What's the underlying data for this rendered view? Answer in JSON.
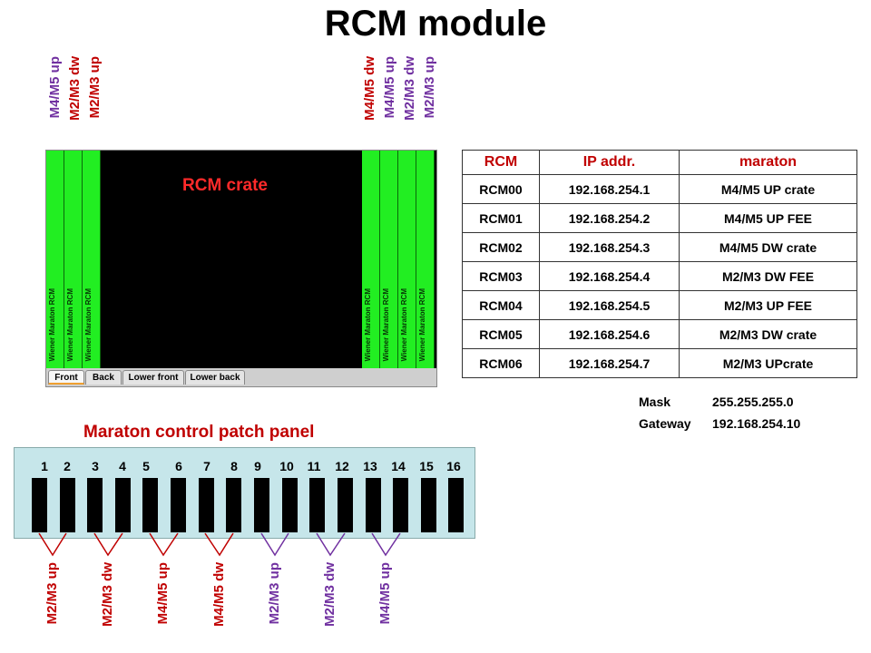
{
  "title": "RCM module",
  "top_labels_left": [
    "M4/M5 up",
    "M2/M3 dw",
    "M2/M3 up"
  ],
  "top_labels_right": [
    "M4/M5 dw",
    "M4/M5 up",
    "M2/M3 dw",
    "M2/M3 up"
  ],
  "crate": {
    "title": "RCM crate",
    "module_label": "Wiener Maraton RCM",
    "tabs": [
      "Front",
      "Back",
      "Lower front",
      "Lower back"
    ]
  },
  "table": {
    "headers": [
      "RCM",
      "IP addr.",
      "maraton"
    ],
    "rows": [
      [
        "RCM00",
        "192.168.254.1",
        "M4/M5 UP crate"
      ],
      [
        "RCM01",
        "192.168.254.2",
        "M4/M5 UP FEE"
      ],
      [
        "RCM02",
        "192.168.254.3",
        "M4/M5 DW crate"
      ],
      [
        "RCM03",
        "192.168.254.4",
        "M2/M3 DW FEE"
      ],
      [
        "RCM04",
        "192.168.254.5",
        "M2/M3 UP FEE"
      ],
      [
        "RCM05",
        "192.168.254.6",
        "M2/M3 DW crate"
      ],
      [
        "RCM06",
        "192.168.254.7",
        "M2/M3 UPcrate"
      ]
    ]
  },
  "network": {
    "mask_label": "Mask",
    "mask_value": "255.255.255.0",
    "gateway_label": "Gateway",
    "gateway_value": "192.168.254.10"
  },
  "patch_panel": {
    "title": "Maraton control patch panel",
    "numbers": [
      "1",
      "2",
      "3",
      "4",
      "5",
      "6",
      "7",
      "8",
      "9",
      "10",
      "11",
      "12",
      "13",
      "14",
      "15",
      "16"
    ]
  },
  "bottom_labels": [
    "M2/M3 up",
    "M2/M3 dw",
    "M4/M5 up",
    "M4/M5 dw",
    "M2/M3 up",
    "M2/M3 dw",
    "M4/M5 up"
  ],
  "colors": {
    "red": "#c00000",
    "purple": "#7030a0",
    "green": "#22ee22",
    "panel": "#c6e6ea"
  }
}
